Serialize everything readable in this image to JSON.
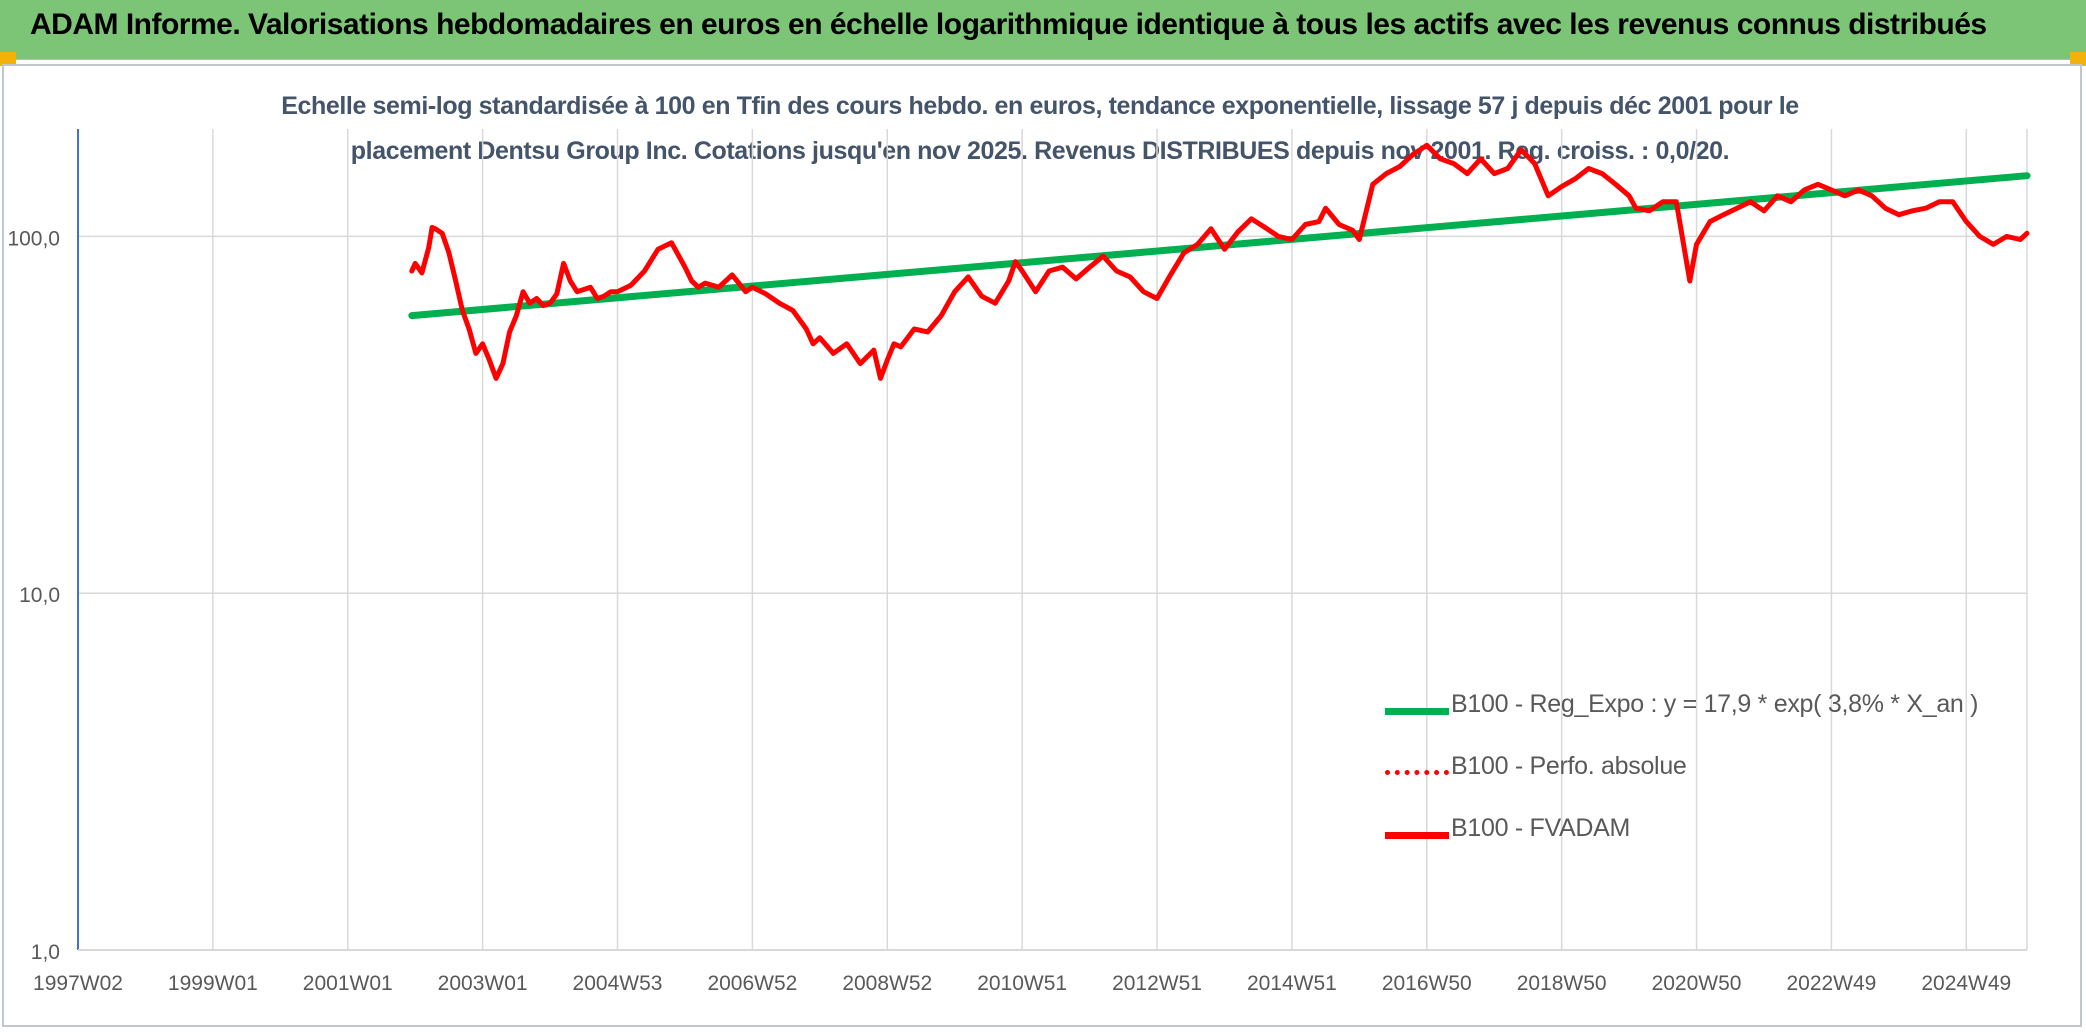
{
  "header": {
    "title": "ADAM Informe. Valorisations hebdomadaires en euros en échelle logarithmique identique à tous les actifs avec les revenus connus distribués"
  },
  "chart_data": {
    "type": "line",
    "title": "Echelle semi-log standardisée à 100 en Tfin des cours hebdo. en euros, tendance exponentielle, lissage 57 j depuis déc 2001 pour le placement Dentsu Group Inc. Cotations jusqu'en nov 2025. Revenus DISTRIBUES depuis nov 2001. Reg. croiss. : 0,0/20.",
    "title_lines": [
      "Echelle semi-log standardisée à 100 en Tfin des cours hebdo. en euros, tendance exponentielle, lissage 57 j depuis déc 2001 pour le",
      "placement Dentsu Group Inc. Cotations jusqu'en nov 2025. Revenus DISTRIBUES depuis nov 2001. Reg. croiss. : 0,0/20."
    ],
    "y_scale": "log",
    "ylim": [
      1,
      200
    ],
    "xlim": [
      1997.0,
      2025.9
    ],
    "y_ticks": [
      {
        "value": 1,
        "label": "1,0"
      },
      {
        "value": 10,
        "label": "10,0"
      },
      {
        "value": 100,
        "label": "100,0"
      }
    ],
    "x_ticks": [
      {
        "value": 1997.0,
        "label": "1997W02"
      },
      {
        "value": 1999.0,
        "label": "1999W01"
      },
      {
        "value": 2001.0,
        "label": "2001W01"
      },
      {
        "value": 2003.0,
        "label": "2003W01"
      },
      {
        "value": 2005.0,
        "label": "2004W53"
      },
      {
        "value": 2007.0,
        "label": "2006W52"
      },
      {
        "value": 2009.0,
        "label": "2008W52"
      },
      {
        "value": 2011.0,
        "label": "2010W51"
      },
      {
        "value": 2013.0,
        "label": "2012W51"
      },
      {
        "value": 2015.0,
        "label": "2014W51"
      },
      {
        "value": 2017.0,
        "label": "2016W50"
      },
      {
        "value": 2019.0,
        "label": "2018W50"
      },
      {
        "value": 2021.0,
        "label": "2020W50"
      },
      {
        "value": 2023.0,
        "label": "2022W49"
      },
      {
        "value": 2025.0,
        "label": "2024W49"
      }
    ],
    "grid": true,
    "legend_position": "bottom-right",
    "series": [
      {
        "name": "B100 - Reg_Expo : y = 17,9 * exp( 3,8% *  X_an )",
        "color": "#00b050",
        "style": "solid",
        "x": [
          2001.95,
          2025.9
        ],
        "y": [
          60,
          148
        ]
      },
      {
        "name": "B100 - Perfo. absolue",
        "color": "#ff0000",
        "style": "dotted",
        "x": [],
        "y": []
      },
      {
        "name": "B100 - FVADAM",
        "color": "#ff0000",
        "style": "solid",
        "x": [
          2001.95,
          2002.0,
          2002.1,
          2002.2,
          2002.25,
          2002.3,
          2002.4,
          2002.5,
          2002.6,
          2002.7,
          2002.8,
          2002.9,
          2003.0,
          2003.1,
          2003.2,
          2003.3,
          2003.4,
          2003.5,
          2003.6,
          2003.7,
          2003.8,
          2003.9,
          2004.0,
          2004.1,
          2004.2,
          2004.3,
          2004.4,
          2004.5,
          2004.6,
          2004.7,
          2004.8,
          2004.9,
          2005.0,
          2005.2,
          2005.4,
          2005.6,
          2005.8,
          2006.0,
          2006.1,
          2006.2,
          2006.3,
          2006.5,
          2006.7,
          2006.9,
          2007.0,
          2007.2,
          2007.4,
          2007.6,
          2007.8,
          2007.9,
          2008.0,
          2008.2,
          2008.4,
          2008.6,
          2008.8,
          2008.9,
          2009.0,
          2009.1,
          2009.2,
          2009.4,
          2009.6,
          2009.8,
          2010.0,
          2010.2,
          2010.4,
          2010.6,
          2010.8,
          2010.9,
          2011.0,
          2011.2,
          2011.4,
          2011.6,
          2011.8,
          2012.0,
          2012.2,
          2012.4,
          2012.6,
          2012.8,
          2013.0,
          2013.2,
          2013.4,
          2013.6,
          2013.8,
          2014.0,
          2014.2,
          2014.4,
          2014.6,
          2014.8,
          2015.0,
          2015.2,
          2015.4,
          2015.5,
          2015.7,
          2015.9,
          2016.0,
          2016.2,
          2016.4,
          2016.6,
          2016.8,
          2017.0,
          2017.2,
          2017.4,
          2017.6,
          2017.8,
          2018.0,
          2018.2,
          2018.4,
          2018.6,
          2018.8,
          2019.0,
          2019.2,
          2019.4,
          2019.6,
          2019.8,
          2020.0,
          2020.1,
          2020.3,
          2020.5,
          2020.7,
          2020.9,
          2021.0,
          2021.2,
          2021.4,
          2021.6,
          2021.8,
          2022.0,
          2022.2,
          2022.4,
          2022.6,
          2022.8,
          2023.0,
          2023.2,
          2023.4,
          2023.6,
          2023.8,
          2024.0,
          2024.2,
          2024.4,
          2024.6,
          2024.8,
          2025.0,
          2025.2,
          2025.4,
          2025.6,
          2025.8,
          2025.9
        ],
        "y": [
          80,
          84,
          79,
          93,
          106,
          105,
          102,
          90,
          75,
          62,
          55,
          47,
          50,
          45,
          40,
          44,
          54,
          60,
          70,
          65,
          67,
          64,
          65,
          69,
          84,
          75,
          70,
          71,
          72,
          67,
          68,
          70,
          70,
          73,
          80,
          92,
          96,
          82,
          75,
          72,
          74,
          72,
          78,
          70,
          72,
          69,
          65,
          62,
          55,
          50,
          52,
          47,
          50,
          44,
          48,
          40,
          45,
          50,
          49,
          55,
          54,
          60,
          70,
          77,
          68,
          65,
          75,
          85,
          80,
          70,
          80,
          82,
          76,
          82,
          88,
          80,
          77,
          70,
          67,
          78,
          90,
          95,
          105,
          92,
          103,
          112,
          106,
          100,
          98,
          108,
          110,
          120,
          108,
          104,
          98,
          140,
          150,
          157,
          170,
          180,
          165,
          160,
          150,
          165,
          150,
          155,
          175,
          160,
          130,
          138,
          145,
          155,
          150,
          140,
          130,
          120,
          118,
          125,
          125,
          75,
          95,
          110,
          115,
          120,
          125,
          118,
          130,
          125,
          135,
          140,
          135,
          130,
          135,
          130,
          120,
          115,
          118,
          120,
          125,
          125,
          110,
          100,
          95,
          100,
          98,
          102
        ]
      }
    ]
  }
}
